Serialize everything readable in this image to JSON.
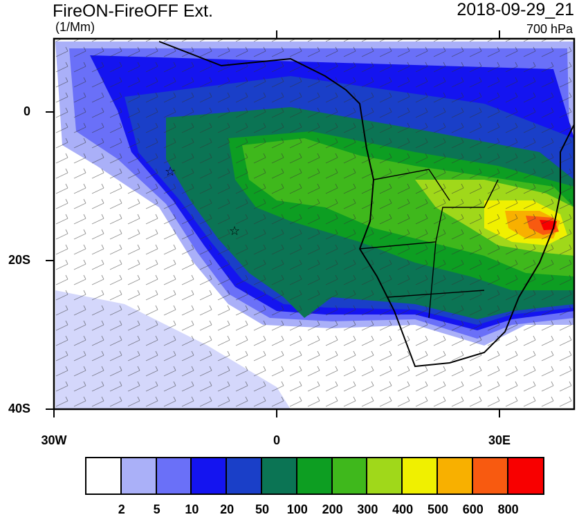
{
  "header": {
    "title": "FireON-FireOFF Ext.",
    "units": "(1/Mm)",
    "datetime": "2018-09-29_21",
    "level": "700 hPa"
  },
  "axes": {
    "y_ticks": [
      "0",
      "20S",
      "40S"
    ],
    "x_ticks": [
      "30W",
      "0",
      "30E"
    ]
  },
  "colorbar": {
    "colors": [
      "#ffffff",
      "#aab0f8",
      "#6a70f8",
      "#1414f0",
      "#1a3fc8",
      "#0b7454",
      "#0d9e22",
      "#3fb81c",
      "#a0d81a",
      "#f0f000",
      "#f8b000",
      "#f85a10",
      "#f80000"
    ],
    "labels": [
      "2",
      "5",
      "10",
      "20",
      "50",
      "100",
      "200",
      "300",
      "400",
      "500",
      "600",
      "800"
    ]
  },
  "map": {
    "markers": [
      "star",
      "star"
    ],
    "wind_barbs": true,
    "projection_extent": "30W to 40E, 10N to 40S"
  }
}
